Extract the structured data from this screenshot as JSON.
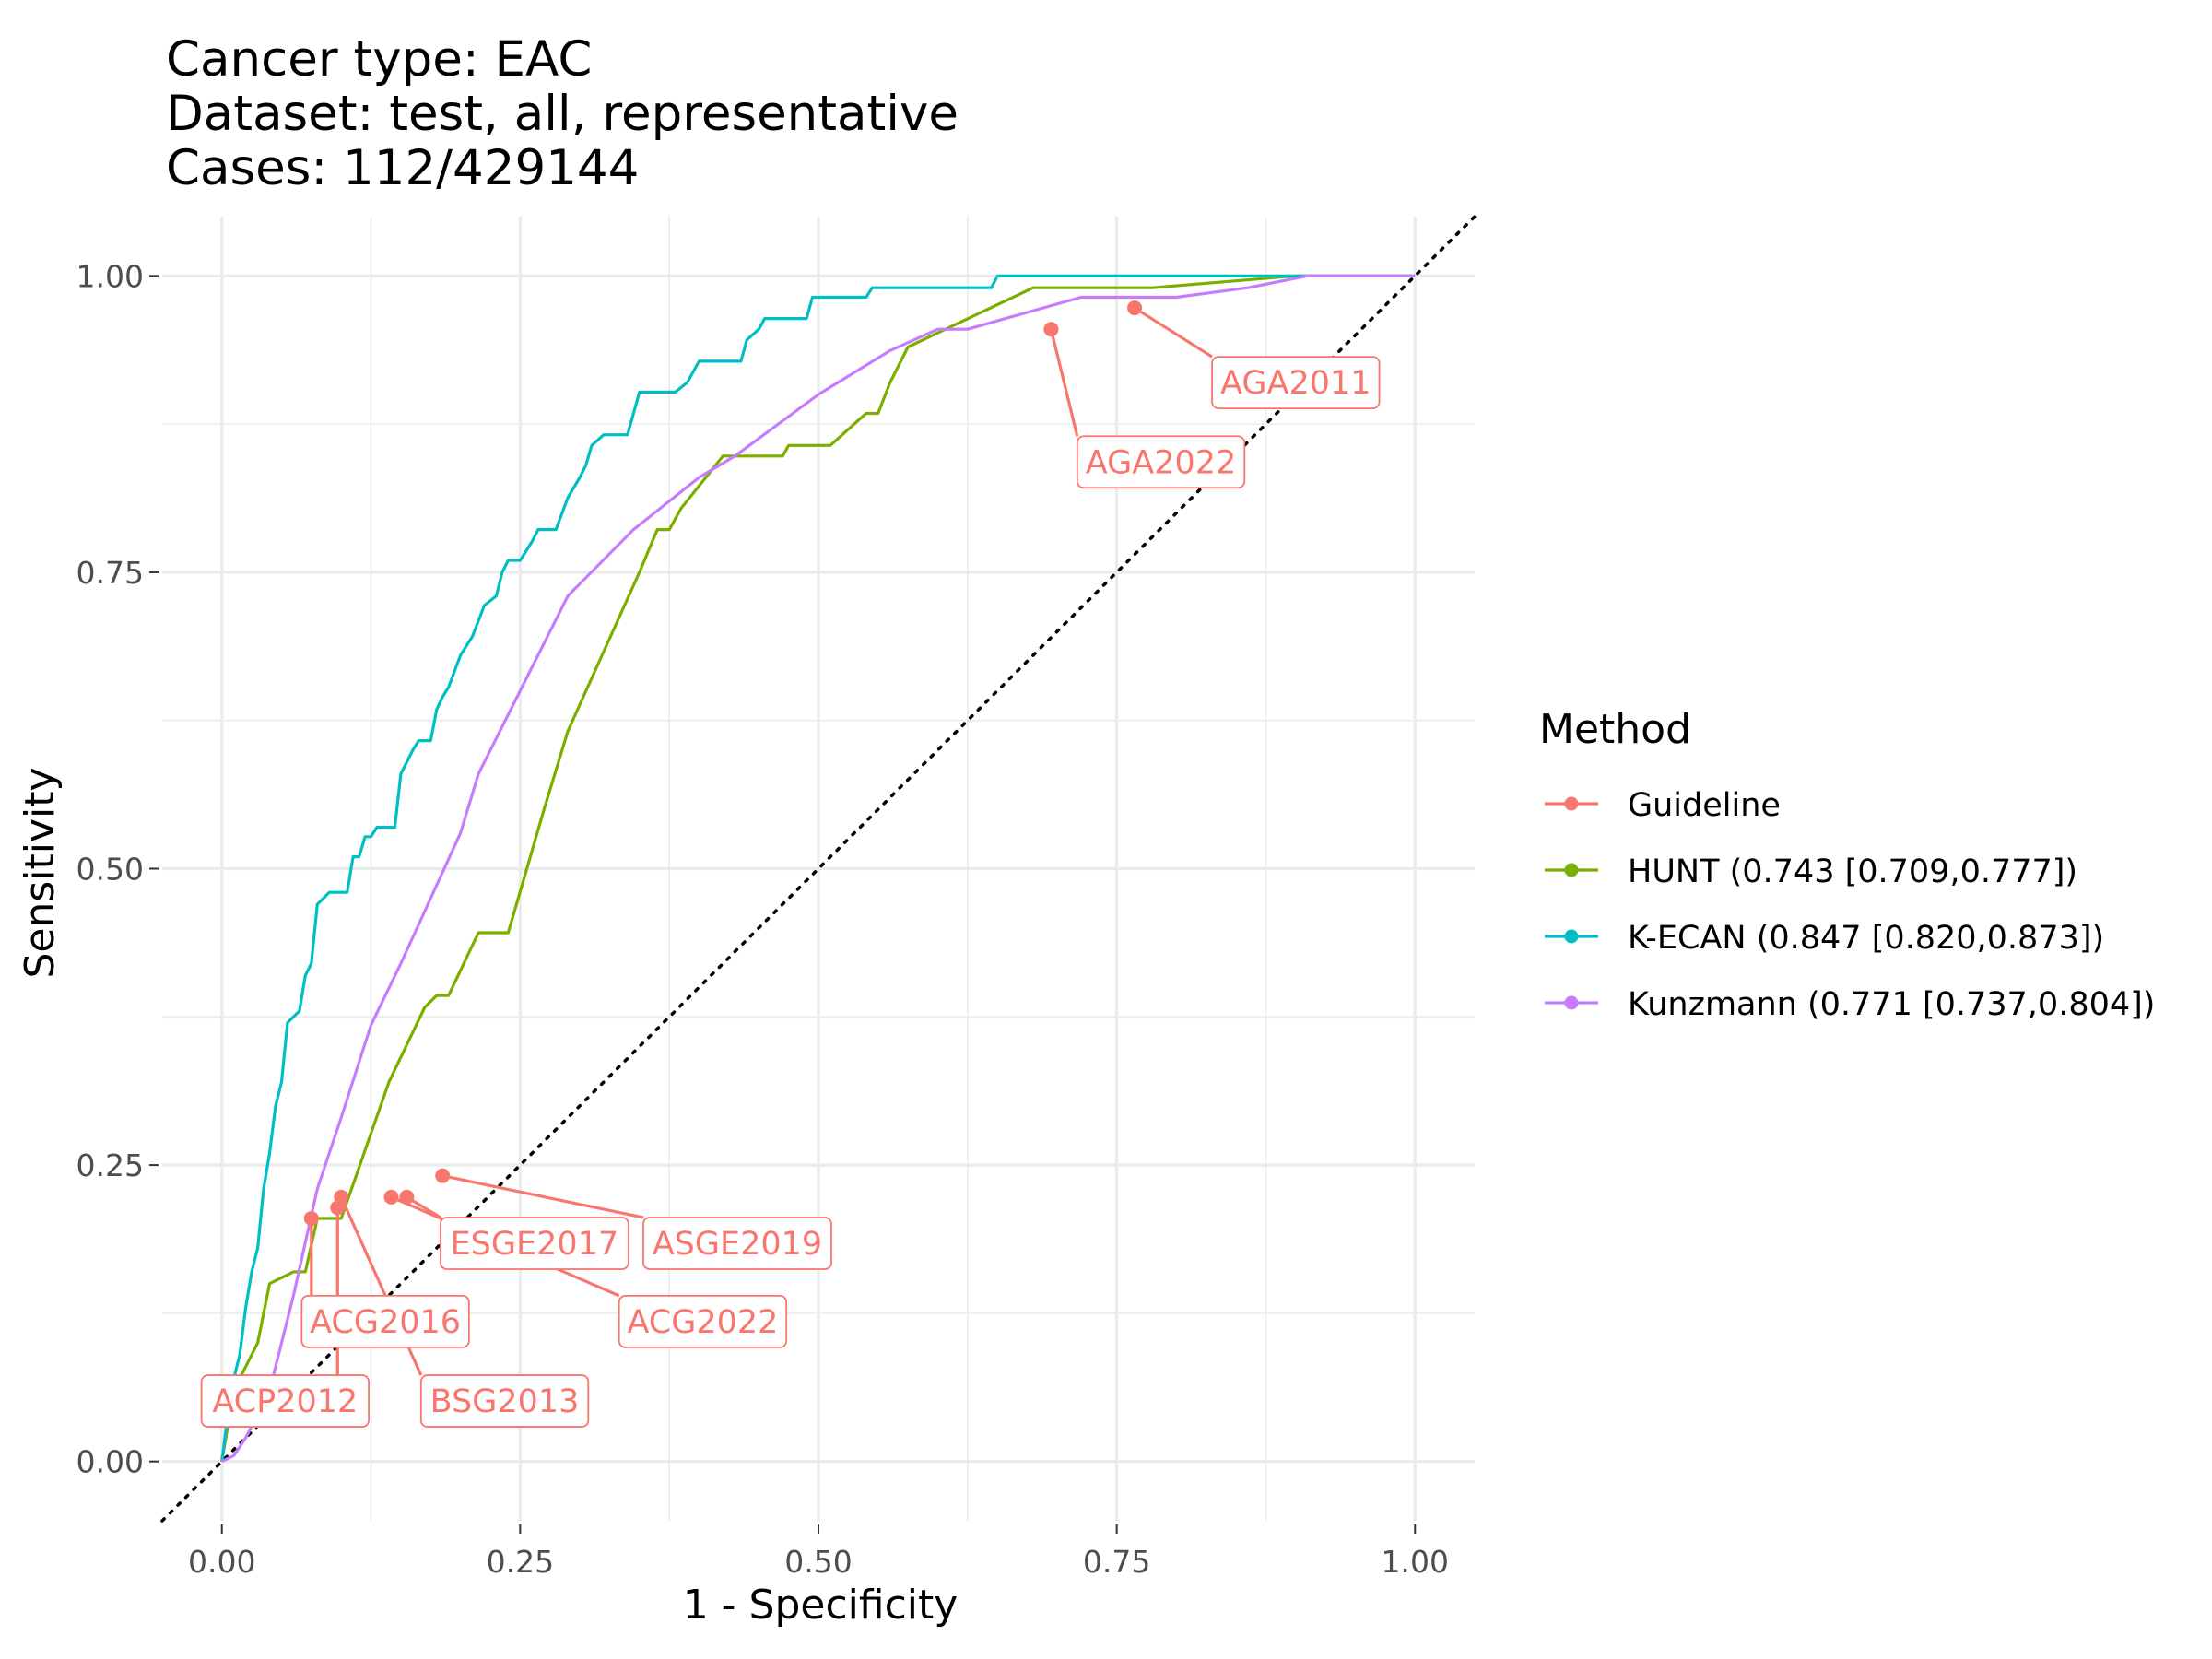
{
  "chart_data": {
    "type": "line",
    "title_lines": [
      "Cancer type: EAC",
      "Dataset: test, all, representative",
      "Cases: 112/429144"
    ],
    "xlabel": "1 - Specificity",
    "ylabel": "Sensitivity",
    "xlim": [
      -0.05,
      1.05
    ],
    "ylim": [
      -0.05,
      1.05
    ],
    "xticks": [
      0.0,
      0.25,
      0.5,
      0.75,
      1.0
    ],
    "xtick_labels": [
      "0.00",
      "0.25",
      "0.50",
      "0.75",
      "1.00"
    ],
    "yticks": [
      0.0,
      0.25,
      0.5,
      0.75,
      1.0
    ],
    "ytick_labels": [
      "0.00",
      "0.25",
      "0.50",
      "0.75",
      "1.00"
    ],
    "grid": true,
    "diagonal_reference": true,
    "legend": {
      "title": "Method",
      "position": "right",
      "entries": [
        "Guideline",
        "HUNT (0.743 [0.709,0.777])",
        "K-ECAN (0.847 [0.820,0.873])",
        "Kunzmann (0.771 [0.737,0.804])"
      ]
    },
    "colors": {
      "Guideline": "#F8766D",
      "HUNT": "#7CAE00",
      "K-ECAN": "#00BFC4",
      "Kunzmann": "#C77CFF"
    },
    "series": [
      {
        "name": "HUNT (0.743 [0.709,0.777])",
        "color": "#7CAE00",
        "points": [
          [
            0.0,
            0.0
          ],
          [
            0.005,
            0.03
          ],
          [
            0.01,
            0.06
          ],
          [
            0.02,
            0.08
          ],
          [
            0.03,
            0.1
          ],
          [
            0.04,
            0.15
          ],
          [
            0.06,
            0.16
          ],
          [
            0.07,
            0.16
          ],
          [
            0.08,
            0.205
          ],
          [
            0.1,
            0.205
          ],
          [
            0.14,
            0.32
          ],
          [
            0.17,
            0.383
          ],
          [
            0.18,
            0.393
          ],
          [
            0.19,
            0.393
          ],
          [
            0.215,
            0.446
          ],
          [
            0.24,
            0.446
          ],
          [
            0.27,
            0.55
          ],
          [
            0.29,
            0.616
          ],
          [
            0.35,
            0.75
          ],
          [
            0.365,
            0.786
          ],
          [
            0.375,
            0.786
          ],
          [
            0.385,
            0.804
          ],
          [
            0.42,
            0.848
          ],
          [
            0.47,
            0.848
          ],
          [
            0.475,
            0.857
          ],
          [
            0.51,
            0.857
          ],
          [
            0.53,
            0.875
          ],
          [
            0.54,
            0.884
          ],
          [
            0.55,
            0.884
          ],
          [
            0.56,
            0.91
          ],
          [
            0.575,
            0.94
          ],
          [
            0.68,
            0.99
          ],
          [
            0.78,
            0.99
          ],
          [
            0.9,
            1.0
          ],
          [
            1.0,
            1.0
          ]
        ]
      },
      {
        "name": "K-ECAN (0.847 [0.820,0.873])",
        "color": "#00BFC4",
        "points": [
          [
            0.0,
            0.0
          ],
          [
            0.005,
            0.04
          ],
          [
            0.01,
            0.07
          ],
          [
            0.015,
            0.09
          ],
          [
            0.02,
            0.13
          ],
          [
            0.025,
            0.16
          ],
          [
            0.03,
            0.18
          ],
          [
            0.035,
            0.23
          ],
          [
            0.04,
            0.26
          ],
          [
            0.045,
            0.3
          ],
          [
            0.05,
            0.32
          ],
          [
            0.055,
            0.37
          ],
          [
            0.065,
            0.38
          ],
          [
            0.07,
            0.41
          ],
          [
            0.075,
            0.42
          ],
          [
            0.08,
            0.47
          ],
          [
            0.085,
            0.475
          ],
          [
            0.09,
            0.48
          ],
          [
            0.105,
            0.48
          ],
          [
            0.11,
            0.51
          ],
          [
            0.115,
            0.51
          ],
          [
            0.12,
            0.527
          ],
          [
            0.125,
            0.527
          ],
          [
            0.13,
            0.535
          ],
          [
            0.145,
            0.535
          ],
          [
            0.15,
            0.58
          ],
          [
            0.16,
            0.6
          ],
          [
            0.165,
            0.608
          ],
          [
            0.175,
            0.608
          ],
          [
            0.18,
            0.634
          ],
          [
            0.185,
            0.645
          ],
          [
            0.19,
            0.653
          ],
          [
            0.2,
            0.68
          ],
          [
            0.21,
            0.696
          ],
          [
            0.22,
            0.722
          ],
          [
            0.23,
            0.73
          ],
          [
            0.235,
            0.75
          ],
          [
            0.24,
            0.76
          ],
          [
            0.25,
            0.76
          ],
          [
            0.26,
            0.776
          ],
          [
            0.265,
            0.786
          ],
          [
            0.28,
            0.786
          ],
          [
            0.29,
            0.813
          ],
          [
            0.3,
            0.83
          ],
          [
            0.305,
            0.84
          ],
          [
            0.31,
            0.857
          ],
          [
            0.32,
            0.866
          ],
          [
            0.34,
            0.866
          ],
          [
            0.35,
            0.902
          ],
          [
            0.38,
            0.902
          ],
          [
            0.39,
            0.91
          ],
          [
            0.4,
            0.928
          ],
          [
            0.435,
            0.928
          ],
          [
            0.44,
            0.946
          ],
          [
            0.45,
            0.955
          ],
          [
            0.455,
            0.964
          ],
          [
            0.49,
            0.964
          ],
          [
            0.495,
            0.982
          ],
          [
            0.54,
            0.982
          ],
          [
            0.545,
            0.99
          ],
          [
            0.645,
            0.99
          ],
          [
            0.65,
            1.0
          ],
          [
            1.0,
            1.0
          ]
        ]
      },
      {
        "name": "Kunzmann (0.771 [0.737,0.804])",
        "color": "#C77CFF",
        "points": [
          [
            0.0,
            0.0
          ],
          [
            0.01,
            0.005
          ],
          [
            0.02,
            0.02
          ],
          [
            0.03,
            0.04
          ],
          [
            0.04,
            0.06
          ],
          [
            0.05,
            0.1
          ],
          [
            0.06,
            0.14
          ],
          [
            0.08,
            0.23
          ],
          [
            0.1,
            0.29
          ],
          [
            0.125,
            0.368
          ],
          [
            0.15,
            0.42
          ],
          [
            0.2,
            0.53
          ],
          [
            0.215,
            0.58
          ],
          [
            0.29,
            0.73
          ],
          [
            0.345,
            0.786
          ],
          [
            0.4,
            0.83
          ],
          [
            0.43,
            0.848
          ],
          [
            0.5,
            0.9
          ],
          [
            0.56,
            0.937
          ],
          [
            0.6,
            0.955
          ],
          [
            0.625,
            0.955
          ],
          [
            0.72,
            0.982
          ],
          [
            0.8,
            0.982
          ],
          [
            0.86,
            0.99
          ],
          [
            0.91,
            1.0
          ],
          [
            1.0,
            1.0
          ]
        ]
      }
    ],
    "guideline_points": [
      {
        "label": "AGA2011",
        "x": 0.765,
        "y": 0.973,
        "label_x": 0.9,
        "label_y": 0.91
      },
      {
        "label": "AGA2022",
        "x": 0.695,
        "y": 0.955,
        "label_x": 0.787,
        "label_y": 0.843
      },
      {
        "label": "ESGE2017",
        "x": 0.155,
        "y": 0.223,
        "label_x": 0.262,
        "label_y": 0.184
      },
      {
        "label": "ASGE2019",
        "x": 0.185,
        "y": 0.241,
        "label_x": 0.432,
        "label_y": 0.184
      },
      {
        "label": "ACG2022",
        "x": 0.142,
        "y": 0.223,
        "label_x": 0.403,
        "label_y": 0.118
      },
      {
        "label": "ACG2016",
        "x": 0.075,
        "y": 0.205,
        "label_x": 0.137,
        "label_y": 0.118
      },
      {
        "label": "BSG2013",
        "x": 0.1,
        "y": 0.223,
        "label_x": 0.237,
        "label_y": 0.051
      },
      {
        "label": "ACP2012",
        "x": 0.097,
        "y": 0.214,
        "label_x": 0.053,
        "label_y": 0.051
      }
    ]
  }
}
